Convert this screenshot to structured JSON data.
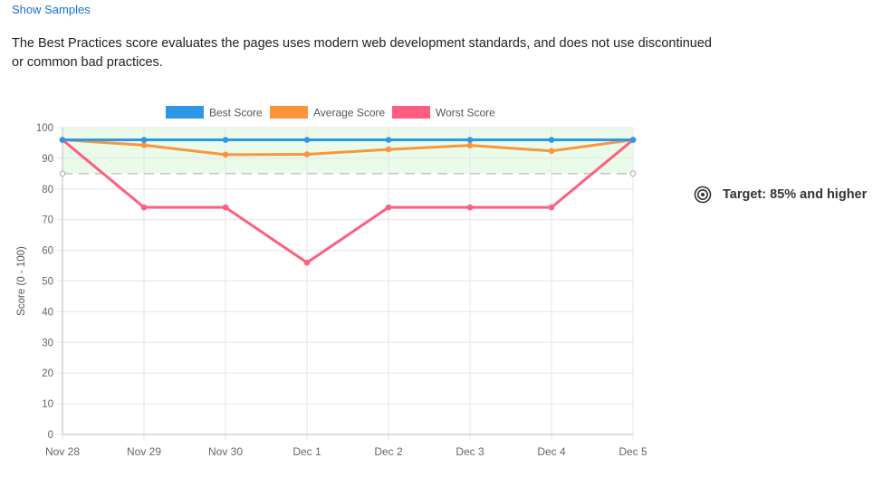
{
  "header": {
    "show_samples": "Show Samples",
    "description": "The Best Practices score evaluates the pages uses modern web development standards, and does not use discontinued or common bad practices."
  },
  "target": {
    "label": "Target: 85% and higher",
    "icon": "target-icon"
  },
  "colors": {
    "best": "#2f97e8",
    "average": "#fb953c",
    "worst": "#ff5f7e",
    "target_band": "#eafbea",
    "threshold": "#c8c8c8",
    "grid": "#e6e6e6"
  },
  "chart_data": {
    "type": "line",
    "categories": [
      "Nov 28",
      "Nov 29",
      "Nov 30",
      "Dec 1",
      "Dec 2",
      "Dec 3",
      "Dec 4",
      "Dec 5"
    ],
    "series": [
      {
        "name": "Best Score",
        "values": [
          96,
          96,
          96,
          96,
          96,
          96,
          96,
          96
        ]
      },
      {
        "name": "Average Score",
        "values": [
          96,
          94.3,
          91.2,
          91.3,
          92.9,
          94.2,
          92.4,
          96
        ]
      },
      {
        "name": "Worst Score",
        "values": [
          96,
          74,
          74,
          56,
          74,
          74,
          74,
          96
        ]
      }
    ],
    "xlabel": "",
    "ylabel": "Score  (0 - 100)",
    "ylim": [
      0,
      100
    ],
    "yticks": [
      0,
      10,
      20,
      30,
      40,
      50,
      60,
      70,
      80,
      90,
      100
    ],
    "threshold": 85,
    "target_band": [
      85,
      100
    ],
    "grid": true,
    "legend": "top"
  }
}
